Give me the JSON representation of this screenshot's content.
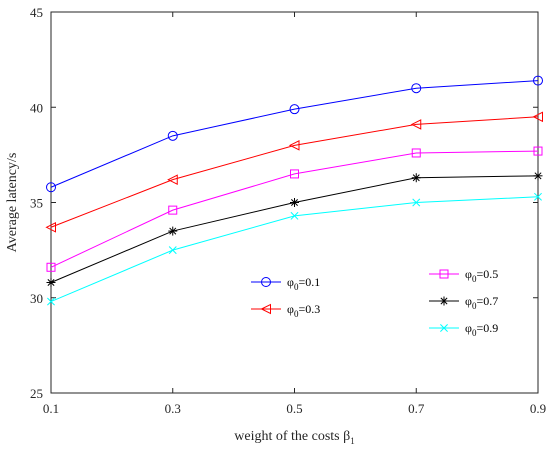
{
  "chart_data": {
    "type": "line",
    "title": "",
    "xlabel": "weight of the costs β",
    "xlabel_sub": "1",
    "ylabel": "Average latency/s",
    "xlim": [
      0.1,
      0.9
    ],
    "ylim": [
      25,
      45
    ],
    "xticks": [
      "0.1",
      "0.3",
      "0.5",
      "0.7",
      "0.9"
    ],
    "yticks": [
      "25",
      "30",
      "35",
      "40",
      "45"
    ],
    "grid": false,
    "x": [
      0.1,
      0.3,
      0.5,
      0.7,
      0.9
    ],
    "series": [
      {
        "name": "φ",
        "sub": "0",
        "eq": "=0.1",
        "color": "#0000ff",
        "marker": "circle",
        "values": [
          35.8,
          38.5,
          39.9,
          41.0,
          41.4
        ]
      },
      {
        "name": "φ",
        "sub": "0",
        "eq": "=0.3",
        "color": "#ff0000",
        "marker": "triangle-left",
        "values": [
          33.7,
          36.2,
          38.0,
          39.1,
          39.5
        ]
      },
      {
        "name": "φ",
        "sub": "0",
        "eq": "=0.5",
        "color": "#ff00ff",
        "marker": "square",
        "values": [
          31.6,
          34.6,
          36.5,
          37.6,
          37.7
        ]
      },
      {
        "name": "φ",
        "sub": "0",
        "eq": "=0.7",
        "color": "#000000",
        "marker": "star",
        "values": [
          30.8,
          33.5,
          35.0,
          36.3,
          36.4
        ]
      },
      {
        "name": "φ",
        "sub": "0",
        "eq": "=0.9",
        "color": "#00ffff",
        "marker": "cross",
        "values": [
          29.8,
          32.5,
          34.3,
          35.0,
          35.3
        ]
      }
    ],
    "legends": [
      {
        "placement": "center-left",
        "entries": [
          0,
          1
        ]
      },
      {
        "placement": "center-right",
        "entries": [
          2,
          3,
          4
        ]
      }
    ]
  }
}
